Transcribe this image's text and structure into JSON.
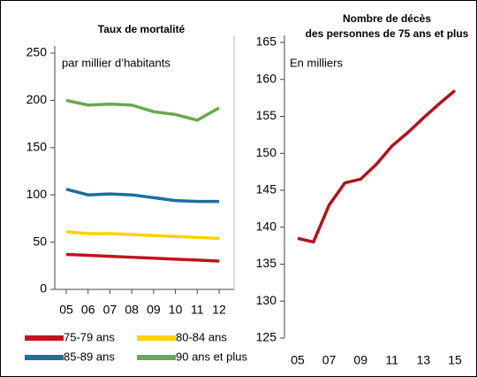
{
  "chart_data": [
    {
      "type": "line",
      "title": "Taux de mortalité",
      "subtitle": "par millier d’habitants",
      "categories": [
        "05",
        "06",
        "07",
        "08",
        "09",
        "10",
        "11",
        "12"
      ],
      "ylim": [
        0,
        250
      ],
      "yticks": [
        0,
        50,
        100,
        150,
        200,
        250
      ],
      "series": [
        {
          "name": "75-79 ans",
          "color": "#c0141e",
          "values": [
            37,
            36,
            35,
            34,
            33,
            32,
            31,
            30
          ]
        },
        {
          "name": "80-84 ans",
          "color": "#ffd200",
          "values": [
            61,
            59,
            59,
            58,
            57,
            56,
            55,
            54
          ]
        },
        {
          "name": "85-89 ans",
          "color": "#1a6ea0",
          "values": [
            106,
            100,
            101,
            100,
            97,
            94,
            93,
            93
          ]
        },
        {
          "name": "90 ans et plus",
          "color": "#6aa84f",
          "values": [
            200,
            195,
            196,
            195,
            188,
            185,
            179,
            192
          ]
        }
      ]
    },
    {
      "type": "line",
      "title": "Nombre de décès des personnes de 75 ans et plus",
      "subtitle": "En milliers",
      "categories": [
        "05",
        null,
        "07",
        null,
        "09",
        null,
        "11",
        null,
        "13",
        null,
        "15"
      ],
      "ylim": [
        125,
        165
      ],
      "yticks": [
        125,
        130,
        135,
        140,
        145,
        150,
        155,
        160,
        165
      ],
      "series": [
        {
          "color": "#b5121b",
          "values": [
            138.5,
            138,
            143,
            146,
            146.5,
            148.5,
            151,
            152.8,
            154.8,
            156.7,
            158.5
          ]
        }
      ]
    }
  ]
}
